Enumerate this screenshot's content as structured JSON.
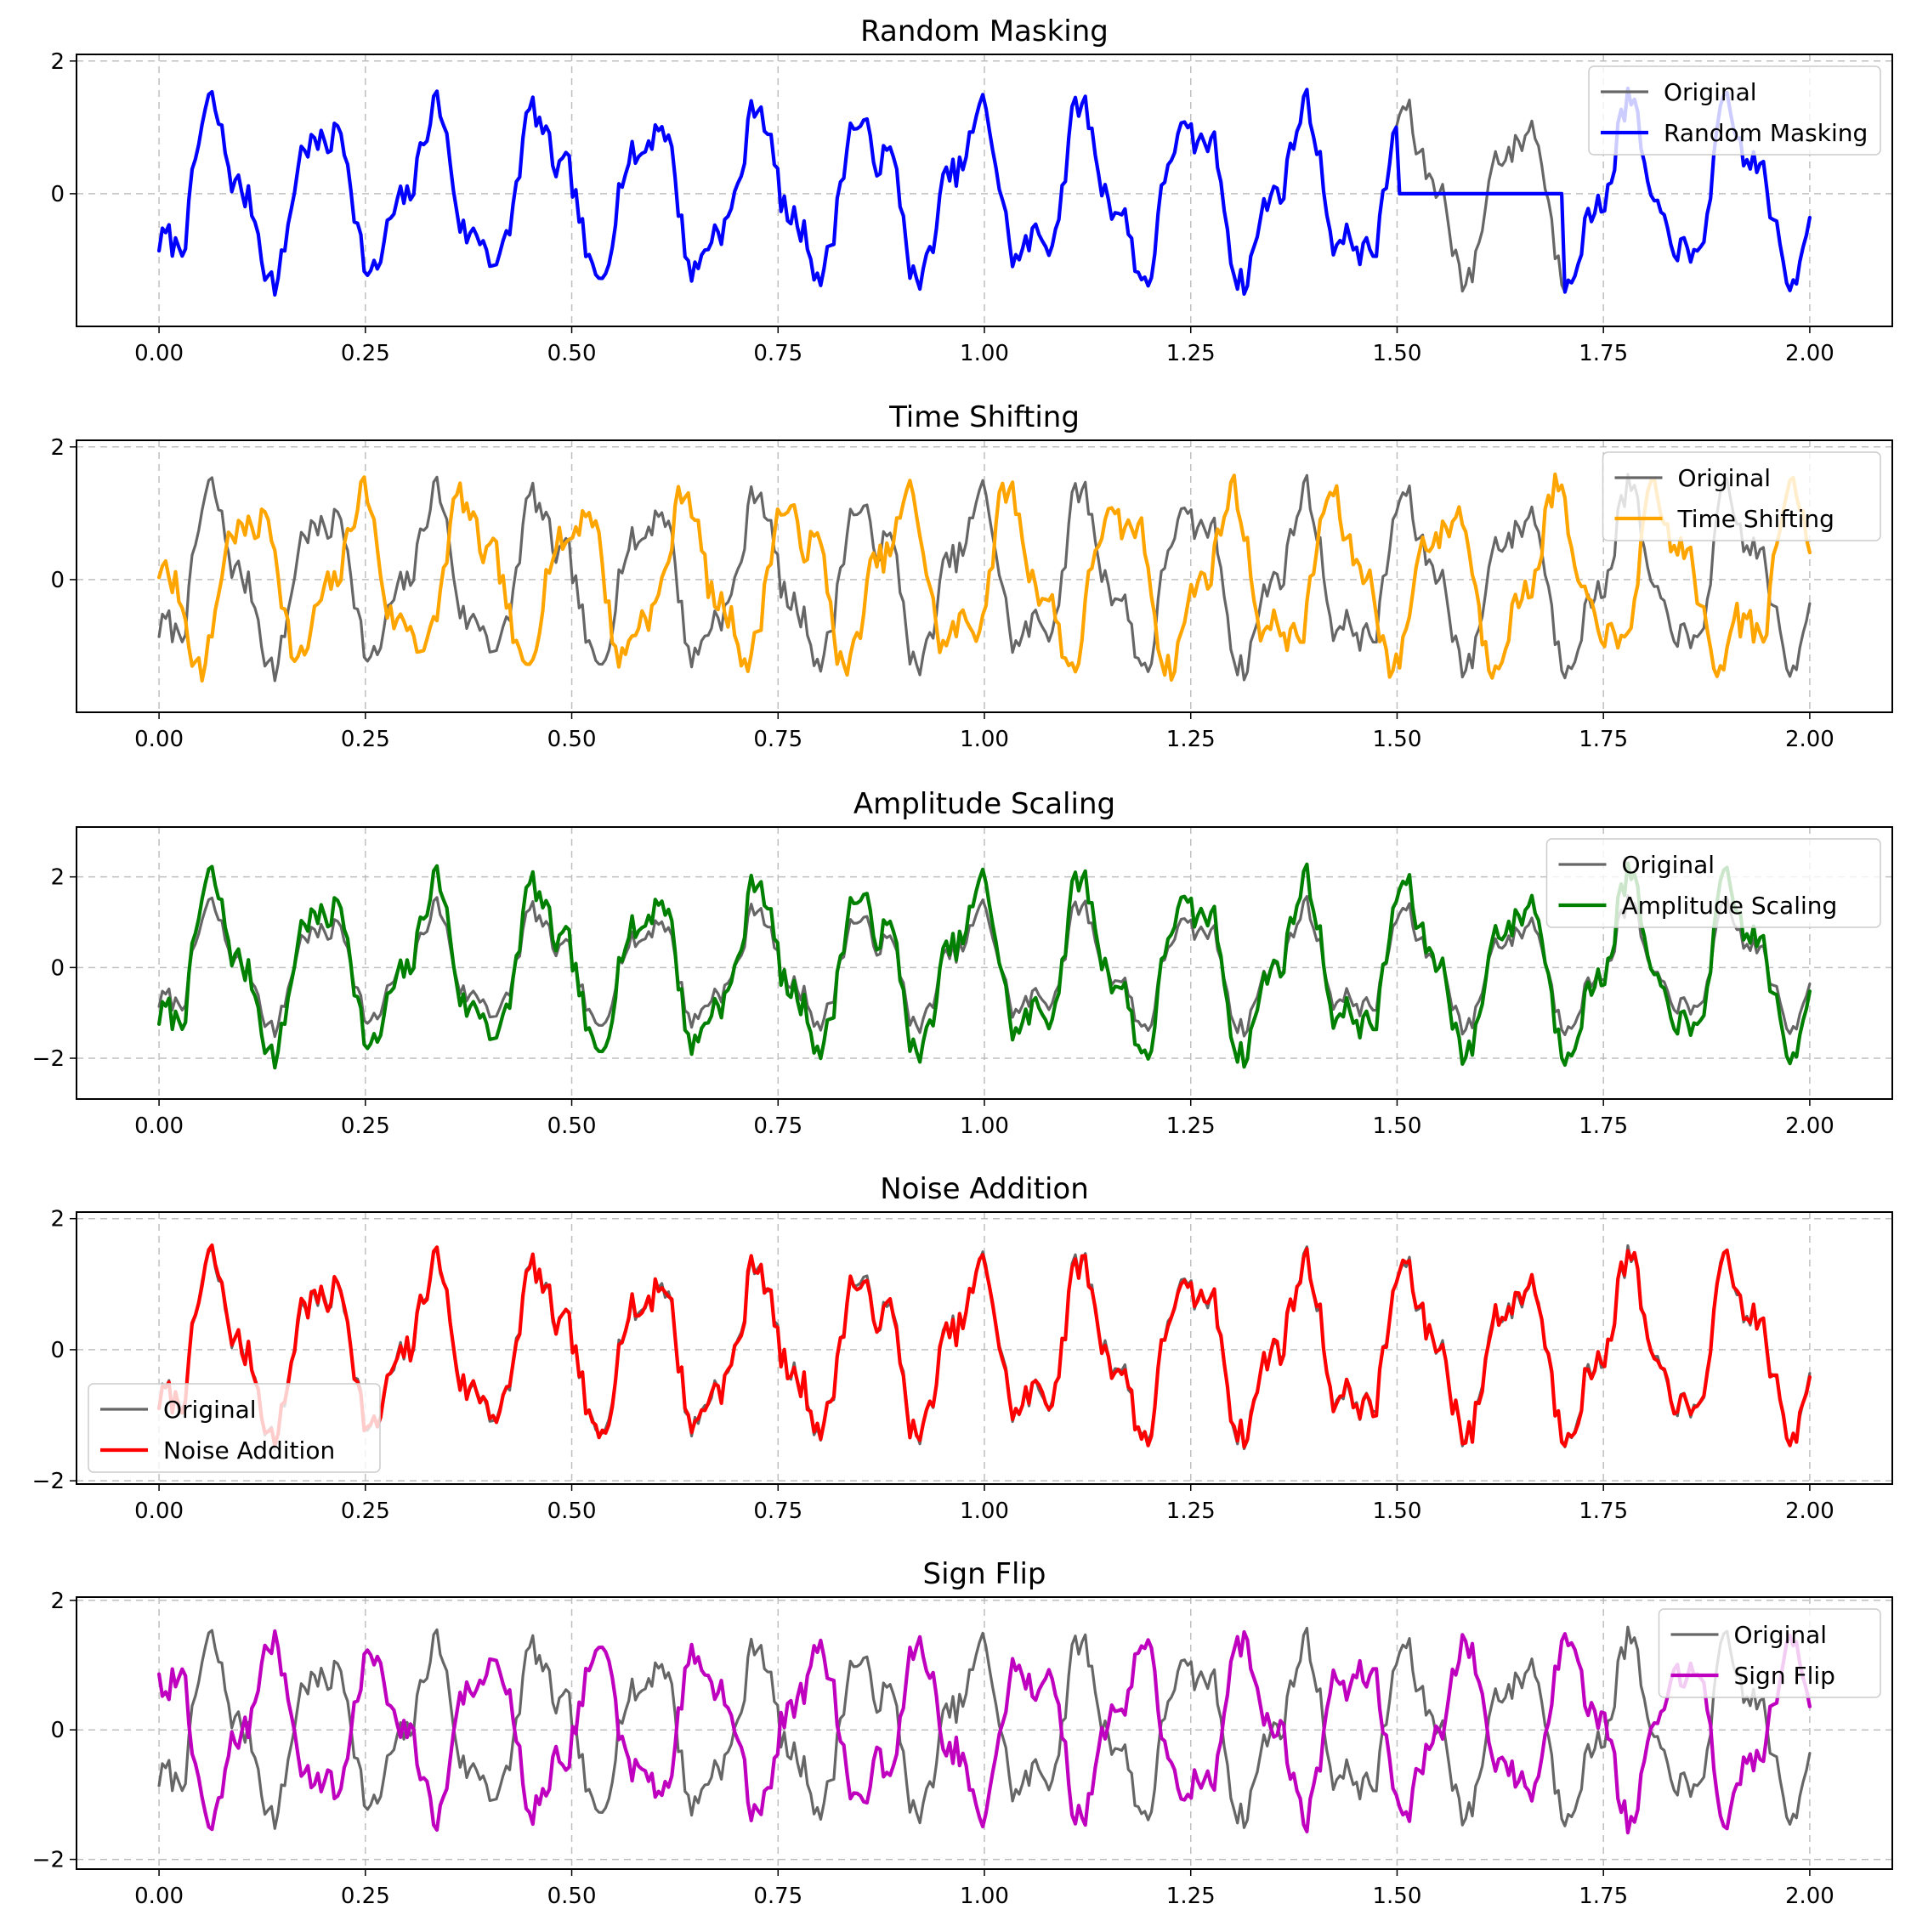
{
  "figure": {
    "colors": {
      "original": "#666666",
      "random_masking": "#0000ff",
      "time_shifting": "#ffa500",
      "amplitude_scaling": "#008000",
      "noise_addition": "#ff0000",
      "sign_flip": "#bf00bf"
    }
  },
  "chart_data": [
    {
      "type": "line",
      "title": "Random Masking",
      "xlabel": "",
      "ylabel": "",
      "xlim": [
        -0.1,
        2.1
      ],
      "ylim": [
        -2.0,
        2.1
      ],
      "xticks": [
        0.0,
        0.25,
        0.5,
        0.75,
        1.0,
        1.25,
        1.5,
        1.75,
        2.0
      ],
      "xtick_labels": [
        "0.00",
        "0.25",
        "0.50",
        "0.75",
        "1.00",
        "1.25",
        "1.50",
        "1.75",
        "2.00"
      ],
      "yticks": [
        0,
        2
      ],
      "ytick_labels": [
        "0",
        "2"
      ],
      "grid": true,
      "legend_placement": "upper right",
      "transform": "mask",
      "mask_range": [
        1.5,
        1.7
      ],
      "series": [
        {
          "name": "Original",
          "color": "#666666"
        },
        {
          "name": "Random Masking",
          "color": "#0000ff"
        }
      ]
    },
    {
      "type": "line",
      "title": "Time Shifting",
      "xlabel": "",
      "ylabel": "",
      "xlim": [
        -0.1,
        2.1
      ],
      "ylim": [
        -2.0,
        2.1
      ],
      "xticks": [
        0.0,
        0.25,
        0.5,
        0.75,
        1.0,
        1.25,
        1.5,
        1.75,
        2.0
      ],
      "xtick_labels": [
        "0.00",
        "0.25",
        "0.50",
        "0.75",
        "1.00",
        "1.25",
        "1.50",
        "1.75",
        "2.00"
      ],
      "yticks": [
        0,
        2
      ],
      "ytick_labels": [
        "0",
        "2"
      ],
      "grid": true,
      "legend_placement": "upper right",
      "transform": "shift",
      "shift_amount": 0.09,
      "series": [
        {
          "name": "Original",
          "color": "#666666"
        },
        {
          "name": "Time Shifting",
          "color": "#ffa500"
        }
      ]
    },
    {
      "type": "line",
      "title": "Amplitude Scaling",
      "xlabel": "",
      "ylabel": "",
      "xlim": [
        -0.1,
        2.1
      ],
      "ylim": [
        -2.9,
        3.1
      ],
      "xticks": [
        0.0,
        0.25,
        0.5,
        0.75,
        1.0,
        1.25,
        1.5,
        1.75,
        2.0
      ],
      "xtick_labels": [
        "0.00",
        "0.25",
        "0.50",
        "0.75",
        "1.00",
        "1.25",
        "1.50",
        "1.75",
        "2.00"
      ],
      "yticks": [
        -2,
        0,
        2
      ],
      "ytick_labels": [
        "−2",
        "0",
        "2"
      ],
      "grid": true,
      "legend_placement": "upper right",
      "transform": "scale",
      "scale_factor": 1.45,
      "series": [
        {
          "name": "Original",
          "color": "#666666"
        },
        {
          "name": "Amplitude Scaling",
          "color": "#008000"
        }
      ]
    },
    {
      "type": "line",
      "title": "Noise Addition",
      "xlabel": "",
      "ylabel": "",
      "xlim": [
        -0.1,
        2.1
      ],
      "ylim": [
        -2.05,
        2.1
      ],
      "xticks": [
        0.0,
        0.25,
        0.5,
        0.75,
        1.0,
        1.25,
        1.5,
        1.75,
        2.0
      ],
      "xtick_labels": [
        "0.00",
        "0.25",
        "0.50",
        "0.75",
        "1.00",
        "1.25",
        "1.50",
        "1.75",
        "2.00"
      ],
      "yticks": [
        -2,
        0,
        2
      ],
      "ytick_labels": [
        "−2",
        "0",
        "2"
      ],
      "grid": true,
      "legend_placement": "lower left",
      "transform": "noise",
      "noise_std": 0.08,
      "series": [
        {
          "name": "Original",
          "color": "#666666"
        },
        {
          "name": "Noise Addition",
          "color": "#ff0000"
        }
      ]
    },
    {
      "type": "line",
      "title": "Sign Flip",
      "xlabel": "",
      "ylabel": "",
      "xlim": [
        -0.1,
        2.1
      ],
      "ylim": [
        -2.15,
        2.05
      ],
      "xticks": [
        0.0,
        0.25,
        0.5,
        0.75,
        1.0,
        1.25,
        1.5,
        1.75,
        2.0
      ],
      "xtick_labels": [
        "0.00",
        "0.25",
        "0.50",
        "0.75",
        "1.00",
        "1.25",
        "1.50",
        "1.75",
        "2.00"
      ],
      "yticks": [
        -2,
        0,
        2
      ],
      "ytick_labels": [
        "−2",
        "0",
        "2"
      ],
      "grid": true,
      "legend_placement": "upper right",
      "transform": "flip",
      "series": [
        {
          "name": "Original",
          "color": "#666666"
        },
        {
          "name": "Sign Flip",
          "color": "#bf00bf"
        }
      ]
    }
  ]
}
